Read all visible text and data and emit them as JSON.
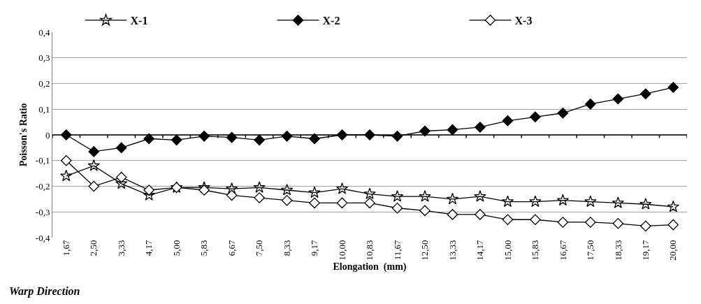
{
  "chart_data": {
    "type": "line",
    "xlabel": "Elongation  (mm)",
    "ylabel": "Poisson's Ratio",
    "annotations": [
      "Warp Direction"
    ],
    "categories": [
      "1,67",
      "2,50",
      "3,33",
      "4,17",
      "5,00",
      "5,83",
      "6,67",
      "7,50",
      "8,33",
      "9,17",
      "10,00",
      "10,83",
      "11,67",
      "12,50",
      "13,33",
      "14,17",
      "15,00",
      "15,83",
      "16,67",
      "17,50",
      "18,33",
      "19,17",
      "20,00"
    ],
    "ylim": [
      -0.4,
      0.4
    ],
    "yticks": [
      {
        "value": -0.4,
        "label": "-0,4"
      },
      {
        "value": -0.3,
        "label": "-0,3"
      },
      {
        "value": -0.2,
        "label": "-0,2"
      },
      {
        "value": -0.1,
        "label": "-0,1"
      },
      0,
      {
        "value": 0.1,
        "label": "0,1"
      },
      {
        "value": 0.2,
        "label": "0,2"
      },
      {
        "value": 0.3,
        "label": "0,3"
      },
      {
        "value": 0.4,
        "label": "0,4"
      }
    ],
    "grid": "y",
    "legend": "top",
    "line_style": "solid",
    "series": [
      {
        "name": "X-1",
        "color": "#000000",
        "marker": "star",
        "values": [
          -0.16,
          -0.12,
          -0.19,
          -0.235,
          -0.205,
          -0.205,
          -0.21,
          -0.205,
          -0.215,
          -0.225,
          -0.21,
          -0.23,
          -0.24,
          -0.24,
          -0.25,
          -0.24,
          -0.26,
          -0.26,
          -0.255,
          -0.26,
          -0.265,
          -0.27,
          -0.28
        ]
      },
      {
        "name": "X-2",
        "color": "#000000",
        "marker": "diamond",
        "values": [
          0,
          -0.065,
          -0.05,
          -0.015,
          -0.02,
          -0.005,
          -0.01,
          -0.02,
          -0.005,
          -0.015,
          0,
          0,
          -0.005,
          0.015,
          0.02,
          0.03,
          0.055,
          0.07,
          0.085,
          0.12,
          0.14,
          0.16,
          0.185
        ]
      },
      {
        "name": "X-3",
        "color": "#000000",
        "marker": "diamond",
        "values": [
          -0.1,
          -0.2,
          -0.165,
          -0.215,
          -0.205,
          -0.215,
          -0.235,
          -0.245,
          -0.255,
          -0.265,
          -0.265,
          -0.265,
          -0.285,
          -0.295,
          -0.31,
          -0.31,
          -0.33,
          -0.33,
          -0.34,
          -0.34,
          -0.345,
          -0.355,
          -0.35
        ]
      }
    ]
  }
}
